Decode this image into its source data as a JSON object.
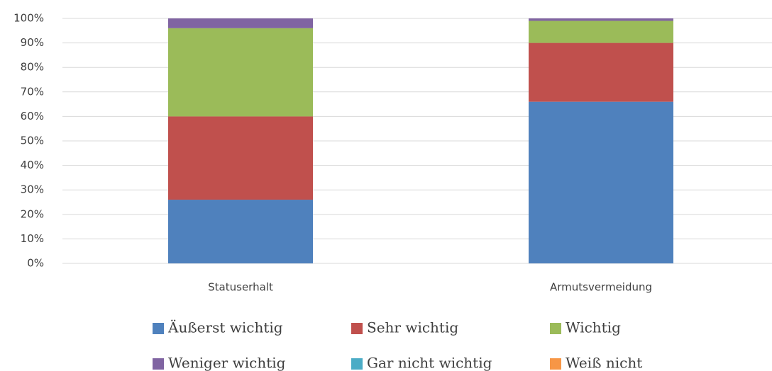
{
  "chart_data": {
    "type": "stacked_bar",
    "categories": [
      "Statuserhalt",
      "Armutsvermeidung"
    ],
    "series": [
      {
        "name": "Äußerst wichtig",
        "color": "#4f81bd",
        "values": [
          26,
          66
        ]
      },
      {
        "name": "Sehr wichtig",
        "color": "#c0504d",
        "values": [
          34,
          24
        ]
      },
      {
        "name": "Wichtig",
        "color": "#9bbb59",
        "values": [
          36,
          9
        ]
      },
      {
        "name": "Weniger wichtig",
        "color": "#8064a2",
        "values": [
          4,
          1
        ]
      },
      {
        "name": "Gar nicht wichtig",
        "color": "#4bacc6",
        "values": [
          0,
          0
        ]
      },
      {
        "name": "Weiß nicht",
        "color": "#f79646",
        "values": [
          0,
          0
        ]
      }
    ],
    "ylim": [
      0,
      100
    ],
    "yticks": [
      {
        "value": 0,
        "label": "0%"
      },
      {
        "value": 10,
        "label": "10%"
      },
      {
        "value": 20,
        "label": "20%"
      },
      {
        "value": 30,
        "label": "30%"
      },
      {
        "value": 40,
        "label": "40%"
      },
      {
        "value": 50,
        "label": "50%"
      },
      {
        "value": 60,
        "label": "60%"
      },
      {
        "value": 70,
        "label": "70%"
      },
      {
        "value": 80,
        "label": "80%"
      },
      {
        "value": 90,
        "label": "90%"
      },
      {
        "value": 100,
        "label": "100%"
      }
    ],
    "grid": true,
    "legend": "bottom"
  }
}
